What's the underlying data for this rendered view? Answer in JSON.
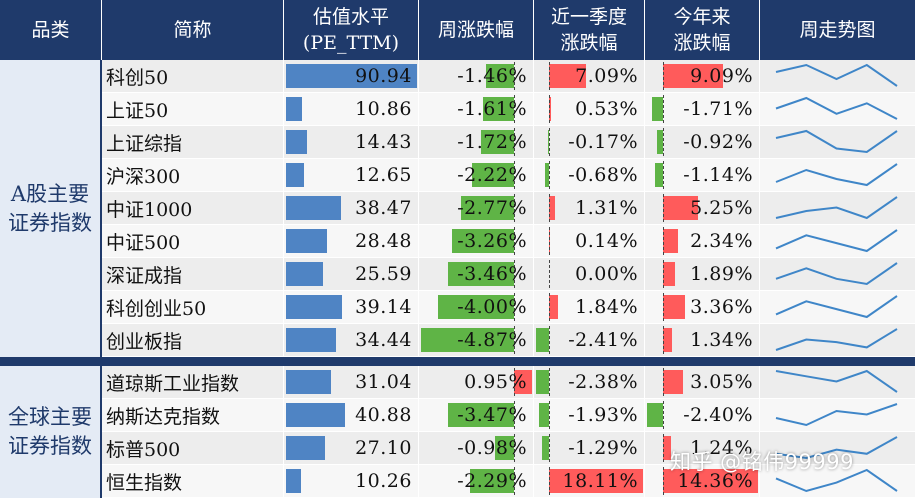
{
  "chart_data": {
    "type": "table",
    "columns": {
      "category": "品类",
      "name": "简称",
      "pe_line1": "估值水平",
      "pe_line2": "(PE_TTM)",
      "week": "周涨跌幅",
      "q_line1": "近一季度",
      "q_line2": "涨跌幅",
      "ytd_line1": "今年来",
      "ytd_line2": "涨跌幅",
      "trend": "周走势图"
    },
    "groups": [
      {
        "label": "A股主要证券指数",
        "rows": [
          {
            "name": "科创50",
            "pe": 90.94,
            "pe_text": "90.94",
            "week": -1.46,
            "week_text": "-1.46%",
            "quarter": 7.09,
            "quarter_text": "7.09%",
            "ytd": 9.09,
            "ytd_text": "9.09%",
            "trend": [
              2,
              3,
              1,
              3,
              0
            ]
          },
          {
            "name": "上证50",
            "pe": 10.86,
            "pe_text": "10.86",
            "week": -1.61,
            "week_text": "-1.61%",
            "quarter": 0.53,
            "quarter_text": "0.53%",
            "ytd": -1.71,
            "ytd_text": "-1.71%",
            "trend": [
              2,
              4,
              1,
              3,
              0
            ]
          },
          {
            "name": "上证综指",
            "pe": 14.43,
            "pe_text": "14.43",
            "week": -1.72,
            "week_text": "-1.72%",
            "quarter": -0.17,
            "quarter_text": "-0.17%",
            "ytd": -0.92,
            "ytd_text": "-0.92%",
            "trend": [
              2,
              3,
              0.5,
              0,
              3
            ]
          },
          {
            "name": "沪深300",
            "pe": 12.65,
            "pe_text": "12.65",
            "week": -2.22,
            "week_text": "-2.22%",
            "quarter": -0.68,
            "quarter_text": "-0.68%",
            "ytd": -1.14,
            "ytd_text": "-1.14%",
            "trend": [
              1,
              3,
              1.5,
              0.5,
              4
            ]
          },
          {
            "name": "中证1000",
            "pe": 38.47,
            "pe_text": "38.47",
            "week": -2.77,
            "week_text": "-2.77%",
            "quarter": 1.31,
            "quarter_text": "1.31%",
            "ytd": 5.25,
            "ytd_text": "5.25%",
            "trend": [
              1,
              2,
              2.5,
              1,
              4
            ]
          },
          {
            "name": "中证500",
            "pe": 28.48,
            "pe_text": "28.48",
            "week": -3.26,
            "week_text": "-3.26%",
            "quarter": 0.14,
            "quarter_text": "0.14%",
            "ytd": 2.34,
            "ytd_text": "2.34%",
            "trend": [
              0.5,
              3,
              1.5,
              0,
              4
            ]
          },
          {
            "name": "深证成指",
            "pe": 25.59,
            "pe_text": "25.59",
            "week": -3.46,
            "week_text": "-3.46%",
            "quarter": 0.0,
            "quarter_text": "0.00%",
            "ytd": 1.89,
            "ytd_text": "1.89%",
            "trend": [
              1,
              3,
              1,
              0,
              4
            ]
          },
          {
            "name": "科创创业50",
            "pe": 39.14,
            "pe_text": "39.14",
            "week": -4.0,
            "week_text": "-4.00%",
            "quarter": 1.84,
            "quarter_text": "1.84%",
            "ytd": 3.36,
            "ytd_text": "3.36%",
            "trend": [
              0.5,
              3,
              1.5,
              0,
              4
            ]
          },
          {
            "name": "创业板指",
            "pe": 34.44,
            "pe_text": "34.44",
            "week": -4.87,
            "week_text": "-4.87%",
            "quarter": -2.41,
            "quarter_text": "-2.41%",
            "ytd": 1.34,
            "ytd_text": "1.34%",
            "trend": [
              0,
              2,
              1.5,
              0.5,
              4
            ]
          }
        ]
      },
      {
        "label": "全球主要证券指数",
        "rows": [
          {
            "name": "道琼斯工业指数",
            "pe": 31.04,
            "pe_text": "31.04",
            "week": 0.95,
            "week_text": "0.95%",
            "quarter": -2.38,
            "quarter_text": "-2.38%",
            "ytd": 3.05,
            "ytd_text": "3.05%",
            "trend": [
              2,
              1.5,
              1,
              2,
              0
            ]
          },
          {
            "name": "纳斯达克指数",
            "pe": 40.88,
            "pe_text": "40.88",
            "week": -3.47,
            "week_text": "-3.47%",
            "quarter": -1.93,
            "quarter_text": "-1.93%",
            "ytd": -2.4,
            "ytd_text": "-2.40%",
            "trend": [
              1,
              0,
              2,
              1.5,
              3
            ]
          },
          {
            "name": "标普500",
            "pe": 27.1,
            "pe_text": "27.10",
            "week": -0.98,
            "week_text": "-0.98%",
            "quarter": -1.29,
            "quarter_text": "-1.29%",
            "ytd": 1.24,
            "ytd_text": "1.24%",
            "trend": [
              1,
              0.5,
              1.5,
              1,
              3
            ]
          },
          {
            "name": "恒生指数",
            "pe": 10.26,
            "pe_text": "10.26",
            "week": -2.29,
            "week_text": "-2.29%",
            "quarter": 18.11,
            "quarter_text": "18.11%",
            "ytd": 14.36,
            "ytd_text": "14.36%",
            "trend": [
              2,
              0.5,
              1.5,
              3,
              0.5
            ]
          }
        ]
      }
    ],
    "scales": {
      "pe_max": 90.94,
      "week_range": [
        -4.87,
        0.95
      ],
      "quarter_range": [
        -2.41,
        18.11
      ],
      "ytd_range": [
        -2.4,
        14.36
      ]
    },
    "colors": {
      "header": "#1f3a6b",
      "pe_bar": "#4f84c4",
      "positive": "#ff5b5b",
      "negative": "#5fb446",
      "trend_line": "#3f86c8",
      "row_odd": "#ededed",
      "row_even": "#f7f7f7"
    }
  },
  "watermark": "知乎 @铭伟99999"
}
